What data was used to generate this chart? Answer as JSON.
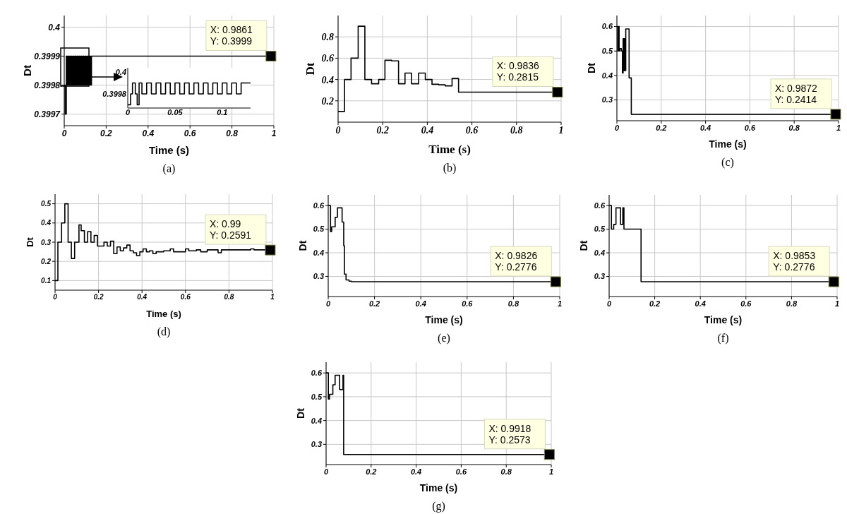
{
  "chart_data": [
    {
      "type": "step",
      "title": "(a)",
      "xlabel": "Time (s)",
      "ylabel": "Dt",
      "color": "#000000",
      "x": [
        0,
        0.004,
        0.01,
        0.015,
        0.02,
        0.025,
        0.03,
        0.035,
        0.04,
        0.045,
        0.05,
        0.055,
        0.06,
        0.065,
        0.07,
        0.075,
        0.08,
        0.085,
        0.09,
        0.095,
        0.1,
        0.105,
        0.11,
        0.115,
        0.12,
        0.125,
        0.13,
        0.9861
      ],
      "values": [
        0.3998,
        0.3997,
        0.3999,
        0.3998,
        0.3999,
        0.3998,
        0.3999,
        0.3998,
        0.3999,
        0.3998,
        0.3999,
        0.3998,
        0.3999,
        0.3998,
        0.3999,
        0.3998,
        0.3999,
        0.3998,
        0.3999,
        0.3998,
        0.3999,
        0.3998,
        0.3999,
        0.3998,
        0.3999,
        0.3998,
        0.3999,
        0.3999
      ],
      "xlim": [
        0,
        1
      ],
      "xticks": [
        0,
        0.2,
        0.4,
        0.6,
        0.8,
        1
      ],
      "ylim": [
        0.39966,
        0.40004
      ],
      "yticks": [
        0.3997,
        0.3998,
        0.3999,
        0.4
      ],
      "grid": true,
      "annotations": [
        {
          "text": "X: 0.9861\nY: 0.3999",
          "x": 0.9861,
          "y": 0.3999
        }
      ]
    },
    {
      "type": "step",
      "color": "#000000",
      "x": [
        0,
        0.003,
        0.005,
        0.008,
        0.01,
        0.012,
        0.015,
        0.02,
        0.025,
        0.03,
        0.035,
        0.04,
        0.045,
        0.05,
        0.055,
        0.06,
        0.065,
        0.07,
        0.075,
        0.08,
        0.085,
        0.09,
        0.095,
        0.1,
        0.105,
        0.11,
        0.115,
        0.12,
        0.123,
        0.13
      ],
      "values": [
        0.3997,
        0.3998,
        0.3999,
        0.3998,
        0.3997,
        0.3999,
        0.3998,
        0.3999,
        0.3998,
        0.3999,
        0.3998,
        0.3999,
        0.3998,
        0.3999,
        0.3998,
        0.3999,
        0.3998,
        0.3999,
        0.3998,
        0.3999,
        0.3998,
        0.3999,
        0.3998,
        0.3999,
        0.3998,
        0.3999,
        0.3998,
        0.3999,
        0.3999,
        0.3999
      ],
      "xlim": [
        0,
        0.13
      ],
      "xticks": [
        0,
        0.05,
        0.1
      ],
      "ylim": [
        0.39967,
        0.40004
      ],
      "yticks": [
        0.3998,
        0.4
      ]
    },
    {
      "type": "step",
      "title": "(b)",
      "xlabel": "Time (s)",
      "ylabel": "Dt",
      "color": "#000000",
      "x": [
        0,
        0.029,
        0.058,
        0.09,
        0.12,
        0.15,
        0.182,
        0.21,
        0.24,
        0.271,
        0.3,
        0.329,
        0.361,
        0.391,
        0.421,
        0.451,
        0.48,
        0.511,
        0.54,
        0.9836,
        1
      ],
      "values": [
        0.1,
        0.4,
        0.6,
        0.9,
        0.4,
        0.36,
        0.4,
        0.58,
        0.575,
        0.36,
        0.46,
        0.36,
        0.46,
        0.4,
        0.355,
        0.35,
        0.34,
        0.41,
        0.2815,
        0.2815,
        0.2815
      ],
      "xlim": [
        0,
        1
      ],
      "xticks": [
        0,
        0.2,
        0.4,
        0.6,
        0.8,
        1
      ],
      "ylim": [
        0,
        1
      ],
      "yticks": [
        0.2,
        0.4,
        0.6,
        0.8
      ],
      "grid": true,
      "annotations": [
        {
          "text": "X: 0.9836\nY: 0.2815",
          "x": 0.9836,
          "y": 0.2815
        }
      ]
    },
    {
      "type": "step",
      "title": "(c)",
      "xlabel": "Time (s)",
      "ylabel": "Dt",
      "color": "#000000",
      "x": [
        0,
        0.004,
        0.007,
        0.01,
        0.013,
        0.02,
        0.025,
        0.028,
        0.031,
        0.034,
        0.037,
        0.04,
        0.055,
        0.062,
        0.065,
        0.9872,
        1
      ],
      "values": [
        0.6,
        0.5,
        0.6,
        0.5,
        0.51,
        0.5,
        0.41,
        0.55,
        0.42,
        0.55,
        0.42,
        0.59,
        0.39,
        0.39,
        0.2414,
        0.2414,
        0.2414
      ],
      "xlim": [
        0,
        1
      ],
      "xticks": [
        0,
        0.2,
        0.4,
        0.6,
        0.8,
        1
      ],
      "ylim": [
        0.215,
        0.645
      ],
      "yticks": [
        0.3,
        0.4,
        0.5,
        0.6
      ],
      "grid": true,
      "annotations": [
        {
          "text": "X: 0.9872\nY: 0.2414",
          "x": 0.9872,
          "y": 0.2414
        }
      ]
    },
    {
      "type": "step",
      "title": "(d)",
      "xlabel": "Time (s)",
      "ylabel": "Dt",
      "color": "#000000",
      "x": [
        0,
        0.013,
        0.03,
        0.045,
        0.06,
        0.075,
        0.09,
        0.11,
        0.12,
        0.135,
        0.15,
        0.165,
        0.18,
        0.195,
        0.225,
        0.24,
        0.255,
        0.27,
        0.285,
        0.3,
        0.315,
        0.33,
        0.345,
        0.36,
        0.375,
        0.39,
        0.405,
        0.42,
        0.435,
        0.45,
        0.465,
        0.5,
        0.53,
        0.545,
        0.6,
        0.615,
        0.65,
        0.67,
        0.7,
        0.75,
        0.765,
        0.9,
        0.915,
        0.99,
        1
      ],
      "values": [
        0.1,
        0.3,
        0.4,
        0.5,
        0.3,
        0.215,
        0.3,
        0.39,
        0.36,
        0.3,
        0.355,
        0.3,
        0.335,
        0.28,
        0.3,
        0.28,
        0.305,
        0.24,
        0.275,
        0.255,
        0.27,
        0.285,
        0.255,
        0.245,
        0.23,
        0.25,
        0.265,
        0.25,
        0.255,
        0.24,
        0.25,
        0.255,
        0.265,
        0.25,
        0.265,
        0.255,
        0.26,
        0.25,
        0.26,
        0.245,
        0.26,
        0.265,
        0.26,
        0.2591,
        0.2591
      ],
      "xlim": [
        0,
        1
      ],
      "xticks": [
        0,
        0.2,
        0.4,
        0.6,
        0.8,
        1
      ],
      "ylim": [
        0.05,
        0.55
      ],
      "yticks": [
        0.1,
        0.2,
        0.3,
        0.4,
        0.5
      ],
      "grid": true,
      "annotations": [
        {
          "text": "X: 0.99\nY: 0.2591",
          "x": 0.99,
          "y": 0.2591
        }
      ]
    },
    {
      "type": "step",
      "title": "(e)",
      "xlabel": "Time (s)",
      "ylabel": "Dt",
      "color": "#000000",
      "x": [
        0,
        0.01,
        0.015,
        0.03,
        0.04,
        0.06,
        0.067,
        0.07,
        0.077,
        0.09,
        0.1,
        0.9826,
        1
      ],
      "values": [
        0.6,
        0.49,
        0.51,
        0.55,
        0.59,
        0.53,
        0.43,
        0.31,
        0.285,
        0.28,
        0.2776,
        0.2776,
        0.2776
      ],
      "xlim": [
        0,
        1
      ],
      "xticks": [
        0,
        0.2,
        0.4,
        0.6,
        0.8,
        1
      ],
      "ylim": [
        0.215,
        0.645
      ],
      "yticks": [
        0.3,
        0.4,
        0.5,
        0.6
      ],
      "grid": true,
      "annotations": [
        {
          "text": "X: 0.9826\nY: 0.2776",
          "x": 0.9826,
          "y": 0.2776
        }
      ]
    },
    {
      "type": "step",
      "title": "(f)",
      "xlabel": "Time (s)",
      "ylabel": "Dt",
      "color": "#000000",
      "x": [
        0,
        0.01,
        0.02,
        0.03,
        0.05,
        0.06,
        0.065,
        0.07,
        0.14,
        0.9853,
        1
      ],
      "values": [
        0.6,
        0.5,
        0.52,
        0.59,
        0.52,
        0.59,
        0.5,
        0.5,
        0.2776,
        0.2776,
        0.2776
      ],
      "xlim": [
        0,
        1
      ],
      "xticks": [
        0,
        0.2,
        0.4,
        0.6,
        0.8,
        1
      ],
      "ylim": [
        0.215,
        0.645
      ],
      "yticks": [
        0.3,
        0.4,
        0.5,
        0.6
      ],
      "grid": true,
      "annotations": [
        {
          "text": "X: 0.9853\nY: 0.2776",
          "x": 0.9853,
          "y": 0.2776
        }
      ]
    },
    {
      "type": "step",
      "title": "(g)",
      "xlabel": "Time (s)",
      "ylabel": "Dt",
      "color": "#000000",
      "x": [
        0,
        0.01,
        0.015,
        0.03,
        0.04,
        0.06,
        0.075,
        0.078,
        0.9918,
        1
      ],
      "values": [
        0.6,
        0.49,
        0.51,
        0.55,
        0.59,
        0.53,
        0.59,
        0.2573,
        0.2573,
        0.2573
      ],
      "xlim": [
        0,
        1
      ],
      "xticks": [
        0,
        0.2,
        0.4,
        0.6,
        0.8,
        1
      ],
      "ylim": [
        0.215,
        0.645
      ],
      "yticks": [
        0.3,
        0.4,
        0.5,
        0.6
      ],
      "grid": true,
      "annotations": [
        {
          "text": "X: 0.9918\nY: 0.2573",
          "x": 0.9918,
          "y": 0.2573
        }
      ]
    }
  ]
}
